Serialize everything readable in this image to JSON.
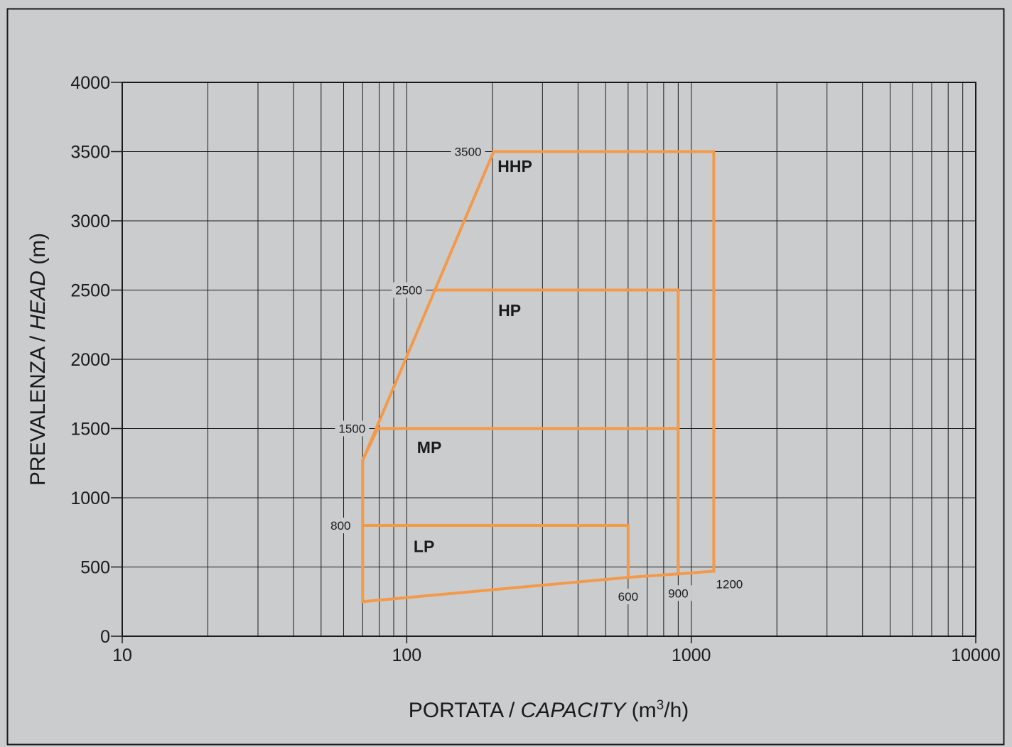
{
  "chart_data": {
    "type": "line",
    "x_scale": "log",
    "xlim": [
      10,
      10000
    ],
    "ylim": [
      0,
      4000
    ],
    "grid": true,
    "legend": "none",
    "xlabel": {
      "prefix": "PORTATA / ",
      "italic": "CAPACITY",
      "suffix_before_sup": " (m",
      "sup": "3",
      "suffix_after_sup": "/h)"
    },
    "ylabel": {
      "prefix": "PREVALENZA / ",
      "italic": "HEAD",
      "suffix": " (m)"
    },
    "x_ticks": [
      {
        "value": 10,
        "label": "10"
      },
      {
        "value": 100,
        "label": "100"
      },
      {
        "value": 1000,
        "label": "1000"
      },
      {
        "value": 10000,
        "label": "10000"
      }
    ],
    "y_ticks": [
      {
        "value": 0,
        "label": "0"
      },
      {
        "value": 500,
        "label": "500"
      },
      {
        "value": 1000,
        "label": "1000"
      },
      {
        "value": 1500,
        "label": "1500"
      },
      {
        "value": 2000,
        "label": "2000"
      },
      {
        "value": 2500,
        "label": "2500"
      },
      {
        "value": 3000,
        "label": "3000"
      },
      {
        "value": 3500,
        "label": "3500"
      },
      {
        "value": 4000,
        "label": "4000"
      }
    ],
    "series": [
      {
        "name": "HHP",
        "points": [
          [
            70,
            1270
          ],
          [
            202,
            3500
          ],
          [
            1200,
            3500
          ],
          [
            1200,
            470
          ]
        ]
      },
      {
        "name": "HP",
        "points": [
          [
            125,
            2500
          ],
          [
            900,
            2500
          ],
          [
            900,
            450
          ]
        ]
      },
      {
        "name": "MP",
        "points": [
          [
            70,
            250
          ],
          [
            70,
            1270
          ],
          [
            79,
            1500
          ],
          [
            900,
            1500
          ]
        ]
      },
      {
        "name": "LP",
        "points": [
          [
            70,
            800
          ],
          [
            600,
            800
          ],
          [
            600,
            425
          ]
        ]
      },
      {
        "name": "",
        "points": [
          [
            70,
            250
          ],
          [
            600,
            425
          ],
          [
            900,
            450
          ],
          [
            1200,
            470
          ]
        ]
      }
    ],
    "region_labels": [
      {
        "text": "HHP",
        "x": 240,
        "y": 3400
      },
      {
        "text": "HP",
        "x": 230,
        "y": 2360
      },
      {
        "text": "MP",
        "x": 120,
        "y": 1370
      },
      {
        "text": "LP",
        "x": 115,
        "y": 655
      }
    ],
    "annotations": [
      {
        "text": "3500",
        "x": 202,
        "y": 3500,
        "side": "left"
      },
      {
        "text": "2500",
        "x": 125,
        "y": 2500,
        "side": "left"
      },
      {
        "text": "1500",
        "x": 79,
        "y": 1500,
        "side": "left"
      },
      {
        "text": "800",
        "x": 70,
        "y": 800,
        "side": "left"
      },
      {
        "text": "600",
        "x": 600,
        "y": 425,
        "side": "below"
      },
      {
        "text": "900",
        "x": 900,
        "y": 450,
        "side": "below"
      },
      {
        "text": "1200",
        "x": 1200,
        "y": 470,
        "side": "right"
      }
    ],
    "colors": {
      "background": "#cbcccd",
      "series": "#f39a4a",
      "axis": "#1a1a1a",
      "grid": "#1a1a1a",
      "text": "#1a1a1a"
    }
  }
}
